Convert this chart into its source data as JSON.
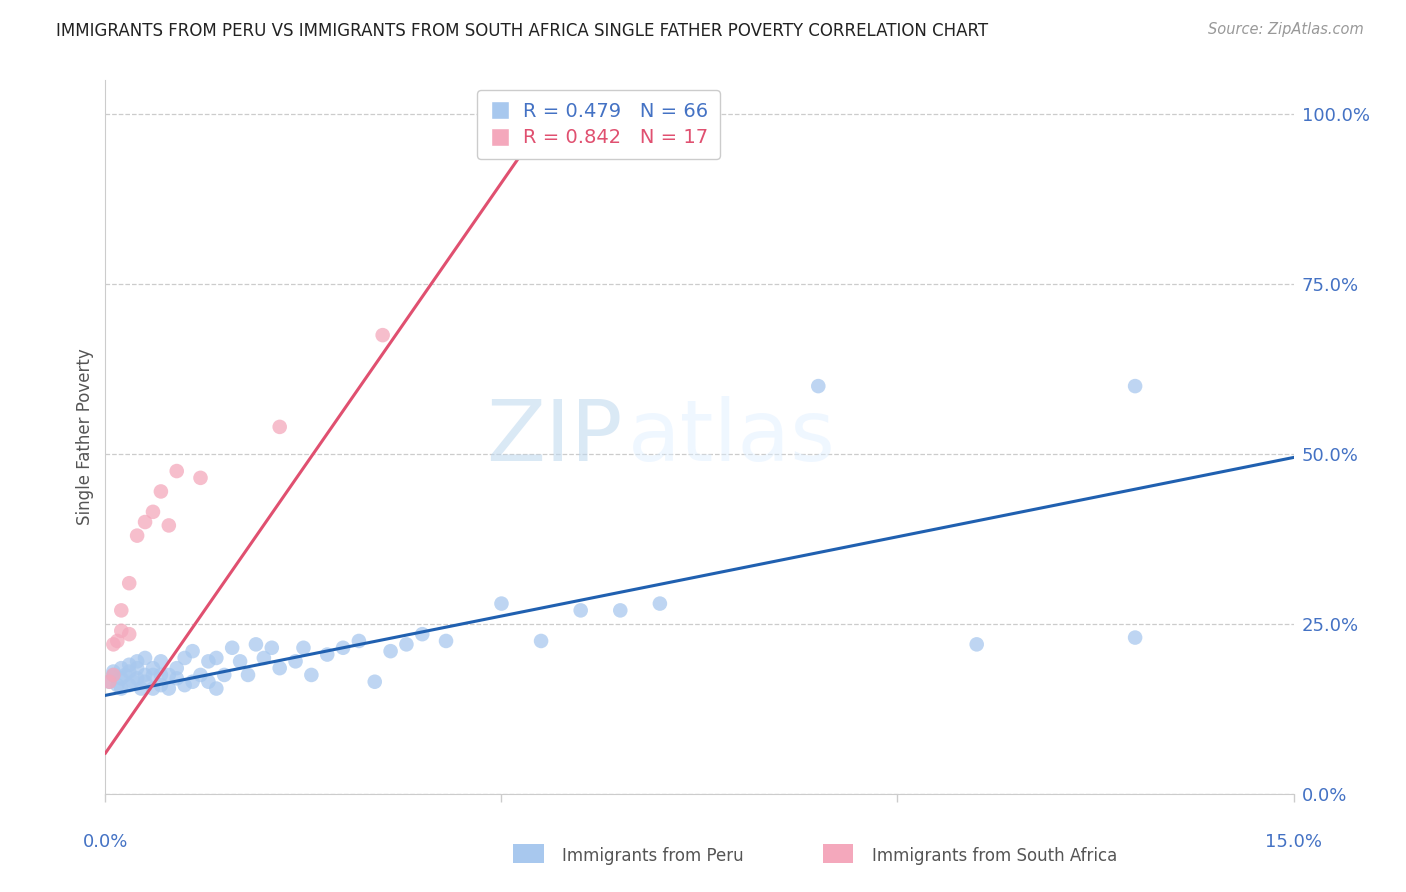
{
  "title": "IMMIGRANTS FROM PERU VS IMMIGRANTS FROM SOUTH AFRICA SINGLE FATHER POVERTY CORRELATION CHART",
  "source": "Source: ZipAtlas.com",
  "ylabel": "Single Father Poverty",
  "right_yticks": [
    0.0,
    0.25,
    0.5,
    0.75,
    1.0
  ],
  "right_ytick_labels": [
    "0.0%",
    "25.0%",
    "50.0%",
    "75.0%",
    "100.0%"
  ],
  "xmin": 0.0,
  "xmax": 0.15,
  "ymin": 0.0,
  "ymax": 1.05,
  "peru_R": 0.479,
  "peru_N": 66,
  "sa_R": 0.842,
  "sa_N": 17,
  "peru_color": "#A8C8EE",
  "sa_color": "#F4A8BC",
  "peru_line_color": "#2060B0",
  "sa_line_color": "#E05070",
  "legend_label_peru": "Immigrants from Peru",
  "legend_label_sa": "Immigrants from South Africa",
  "watermark_zip": "ZIP",
  "watermark_atlas": "atlas",
  "peru_line_x0": 0.0,
  "peru_line_y0": 0.145,
  "peru_line_x1": 0.15,
  "peru_line_y1": 0.495,
  "sa_line_x0": 0.0,
  "sa_line_y0": 0.06,
  "sa_line_x1": 0.056,
  "sa_line_y1": 1.0,
  "peru_pts_x": [
    0.0005,
    0.001,
    0.001,
    0.0015,
    0.002,
    0.002,
    0.002,
    0.0025,
    0.003,
    0.003,
    0.003,
    0.0035,
    0.004,
    0.004,
    0.004,
    0.0045,
    0.005,
    0.005,
    0.005,
    0.006,
    0.006,
    0.006,
    0.007,
    0.007,
    0.007,
    0.008,
    0.008,
    0.009,
    0.009,
    0.01,
    0.01,
    0.011,
    0.011,
    0.012,
    0.013,
    0.013,
    0.014,
    0.014,
    0.015,
    0.016,
    0.017,
    0.018,
    0.019,
    0.02,
    0.021,
    0.022,
    0.024,
    0.025,
    0.026,
    0.028,
    0.03,
    0.032,
    0.034,
    0.036,
    0.038,
    0.04,
    0.043,
    0.05,
    0.055,
    0.06,
    0.065,
    0.07,
    0.09,
    0.11,
    0.13,
    0.13
  ],
  "peru_pts_y": [
    0.165,
    0.175,
    0.18,
    0.16,
    0.17,
    0.185,
    0.155,
    0.175,
    0.16,
    0.18,
    0.19,
    0.165,
    0.17,
    0.185,
    0.195,
    0.155,
    0.165,
    0.175,
    0.2,
    0.155,
    0.175,
    0.185,
    0.16,
    0.175,
    0.195,
    0.155,
    0.175,
    0.17,
    0.185,
    0.16,
    0.2,
    0.165,
    0.21,
    0.175,
    0.165,
    0.195,
    0.155,
    0.2,
    0.175,
    0.215,
    0.195,
    0.175,
    0.22,
    0.2,
    0.215,
    0.185,
    0.195,
    0.215,
    0.175,
    0.205,
    0.215,
    0.225,
    0.165,
    0.21,
    0.22,
    0.235,
    0.225,
    0.28,
    0.225,
    0.27,
    0.27,
    0.28,
    0.6,
    0.22,
    0.23,
    0.6
  ],
  "sa_pts_x": [
    0.0005,
    0.001,
    0.001,
    0.0015,
    0.002,
    0.002,
    0.003,
    0.003,
    0.004,
    0.005,
    0.006,
    0.007,
    0.008,
    0.009,
    0.012,
    0.022,
    0.035
  ],
  "sa_pts_y": [
    0.165,
    0.175,
    0.22,
    0.225,
    0.24,
    0.27,
    0.235,
    0.31,
    0.38,
    0.4,
    0.415,
    0.445,
    0.395,
    0.475,
    0.465,
    0.54,
    0.675
  ]
}
